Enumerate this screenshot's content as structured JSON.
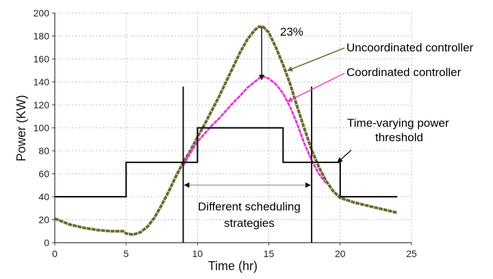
{
  "chart_data": {
    "type": "line",
    "xlabel": "Time (hr)",
    "ylabel": "Power (KW)",
    "xlim": [
      0,
      25
    ],
    "ylim": [
      0,
      200
    ],
    "xticks": [
      0,
      5,
      10,
      15,
      20,
      25
    ],
    "yticks": [
      0,
      20,
      40,
      60,
      80,
      100,
      120,
      140,
      160,
      180,
      200
    ],
    "grid": true,
    "series": [
      {
        "name": "Uncoordinated controller",
        "color": "#6b6b2e",
        "x": [
          0,
          1,
          2,
          3,
          4,
          4.8,
          5,
          5.5,
          6,
          6.5,
          7,
          7.5,
          8,
          8.5,
          9,
          9.5,
          10,
          10.5,
          11,
          11.5,
          12,
          12.5,
          13,
          13.5,
          14,
          14.3,
          14.6,
          15,
          15.5,
          16,
          16.5,
          17,
          17.5,
          18,
          18.5,
          19,
          19.5,
          20,
          21,
          22,
          23,
          24
        ],
        "values": [
          21,
          16,
          13,
          11,
          10,
          10,
          8,
          7,
          9,
          14,
          22,
          33,
          45,
          58,
          70,
          80,
          92,
          103,
          115,
          127,
          140,
          153,
          166,
          177,
          185,
          188,
          188,
          183,
          170,
          155,
          138,
          118,
          99,
          81,
          66,
          54,
          45,
          39,
          35,
          32,
          29,
          26
        ]
      },
      {
        "name": "Coordinated controller",
        "color": "#e83ad6",
        "x": [
          9,
          9.5,
          10,
          10.5,
          11,
          11.5,
          12,
          12.5,
          13,
          13.5,
          14,
          14.5,
          15,
          15.5,
          16,
          16.5,
          17,
          17.5,
          18,
          18.5,
          19
        ],
        "values": [
          67,
          78,
          88,
          95,
          102,
          108,
          115,
          122,
          128,
          135,
          140,
          145,
          143,
          138,
          130,
          118,
          103,
          86,
          72,
          60,
          52
        ]
      },
      {
        "name": "Time-varying power threshold",
        "color": "#111111",
        "step": true,
        "x": [
          0,
          5,
          5,
          10,
          10,
          16,
          16,
          20,
          20,
          24
        ],
        "values": [
          40,
          40,
          70,
          70,
          100,
          100,
          70,
          70,
          40,
          40
        ]
      }
    ],
    "vlines": [
      9,
      18
    ],
    "annotations": {
      "percent": "23%",
      "uncoordinated_label": "Uncoordinated controller",
      "coordinated_label": "Coordinated controller",
      "threshold_label_line1": "Time-varying power",
      "threshold_label_line2": "threshold",
      "scheduling_line1": "Different scheduling",
      "scheduling_line2": "strategies"
    }
  }
}
